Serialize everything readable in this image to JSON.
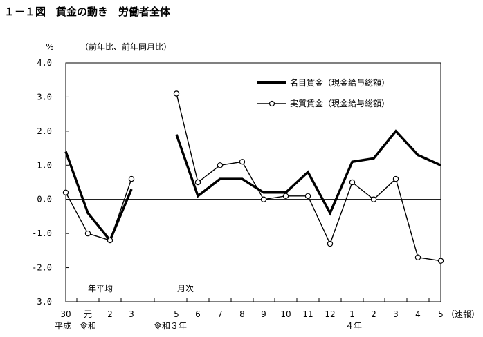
{
  "page": {
    "title": "１－１図　賃金の動き　労働者全体"
  },
  "chart_data": {
    "type": "line",
    "title": "",
    "ylabel": "%",
    "ylabel_note": "（前年比、前年同月比）",
    "ylim": [
      -3.0,
      4.0
    ],
    "yticks": [
      "4.0",
      "3.0",
      "2.0",
      "1.0",
      "0.0",
      "-1.0",
      "-2.0",
      "-3.0"
    ],
    "yticks_values": [
      4,
      3,
      2,
      1,
      0,
      -1,
      -2,
      -3
    ],
    "grid": false,
    "legend_position": "top-right",
    "x_tick_labels": [
      "30",
      "元",
      "2",
      "3",
      "5",
      "6",
      "7",
      "8",
      "9",
      "10",
      "11",
      "12",
      "1",
      "2",
      "3",
      "4",
      "5"
    ],
    "x_suffix_label": "（速報）",
    "x_group_labels": [
      "平成",
      "令和",
      "令和３年",
      "４年"
    ],
    "section_labels": {
      "annual": "年平均",
      "monthly": "月次"
    },
    "series": [
      {
        "name": "名目賃金（現金給与総額）",
        "style": "thick",
        "color": "#000000",
        "segments": [
          [
            1.4,
            -0.4,
            -1.2,
            0.3
          ],
          [
            1.9,
            0.1,
            0.6,
            0.6,
            0.2,
            0.2,
            0.8,
            -0.4,
            1.1,
            1.2,
            2.0,
            1.3,
            1.0
          ]
        ]
      },
      {
        "name": "実質賃金（現金給与総額）",
        "style": "thin-circle",
        "color": "#000000",
        "segments": [
          [
            0.2,
            -1.0,
            -1.2,
            0.6
          ],
          [
            3.1,
            0.5,
            1.0,
            1.1,
            0.0,
            0.1,
            0.1,
            -1.3,
            0.5,
            0.0,
            0.6,
            -1.7,
            -1.8
          ]
        ]
      }
    ]
  }
}
